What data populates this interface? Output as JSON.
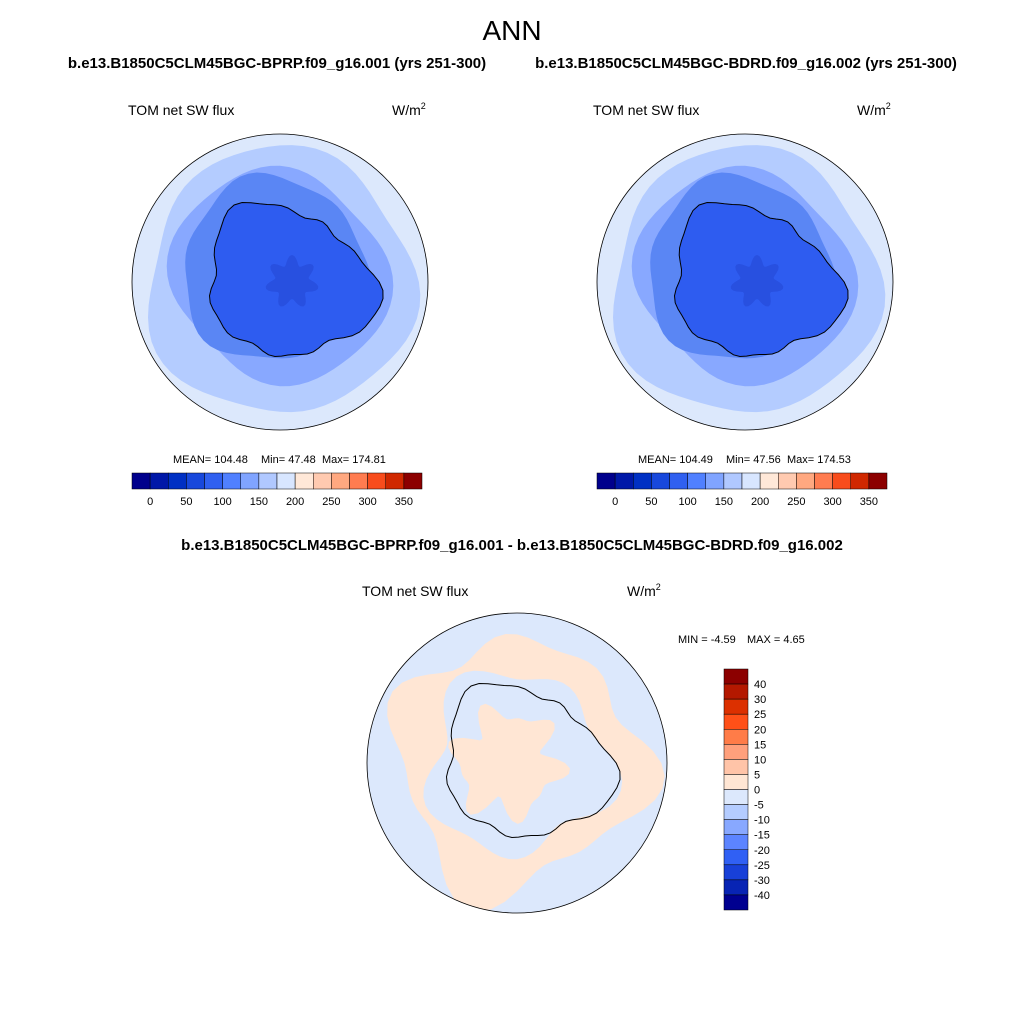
{
  "title": "ANN",
  "panels": [
    {
      "case": "b.e13.B1850C5CLM45BGC-BPRP.f09_g16.001 (yrs 251-300)",
      "variable": "TOM net SW flux",
      "units": "W/m",
      "units_power": "2",
      "stats": {
        "mean": "MEAN= 104.48",
        "min": "Min=  47.48",
        "max": "Max= 174.81"
      }
    },
    {
      "case": "b.e13.B1850C5CLM45BGC-BDRD.f09_g16.002 (yrs 251-300)",
      "variable": "TOM net SW flux",
      "units": "W/m",
      "units_power": "2",
      "stats": {
        "mean": "MEAN= 104.49",
        "min": "Min=  47.56",
        "max": "Max= 174.53"
      }
    }
  ],
  "colorbar": {
    "colors": [
      "#00008c",
      "#0018a8",
      "#0030c4",
      "#1848dc",
      "#3060f0",
      "#5080ff",
      "#80a4ff",
      "#b0c8ff",
      "#d8e6ff",
      "#ffe8d8",
      "#ffcab0",
      "#ffa880",
      "#ff7c50",
      "#f84c1c",
      "#d02800",
      "#8c0000"
    ],
    "labels": [
      "0",
      "50",
      "100",
      "150",
      "200",
      "250",
      "300",
      "350"
    ]
  },
  "difference": {
    "case": "b.e13.B1850C5CLM45BGC-BPRP.f09_g16.001 - b.e13.B1850C5CLM45BGC-BDRD.f09_g16.002",
    "variable": "TOM net SW flux",
    "units": "W/m",
    "units_power": "2",
    "stats": {
      "min": "MIN =  -4.59",
      "max": "MAX =   4.65"
    },
    "colorbar": {
      "colors": [
        "#8c0000",
        "#b41800",
        "#dc3000",
        "#ff5018",
        "#ff7c48",
        "#ffa07c",
        "#ffc4a8",
        "#ffe6d4",
        "#dce8fc",
        "#b4ccff",
        "#88a8ff",
        "#5c84ff",
        "#3060f4",
        "#1840d8",
        "#0824b4",
        "#000090"
      ],
      "labels": [
        "40",
        "30",
        "25",
        "20",
        "15",
        "10",
        "5",
        "0",
        "-5",
        "-10",
        "-15",
        "-20",
        "-25",
        "-30",
        "-40"
      ]
    }
  }
}
